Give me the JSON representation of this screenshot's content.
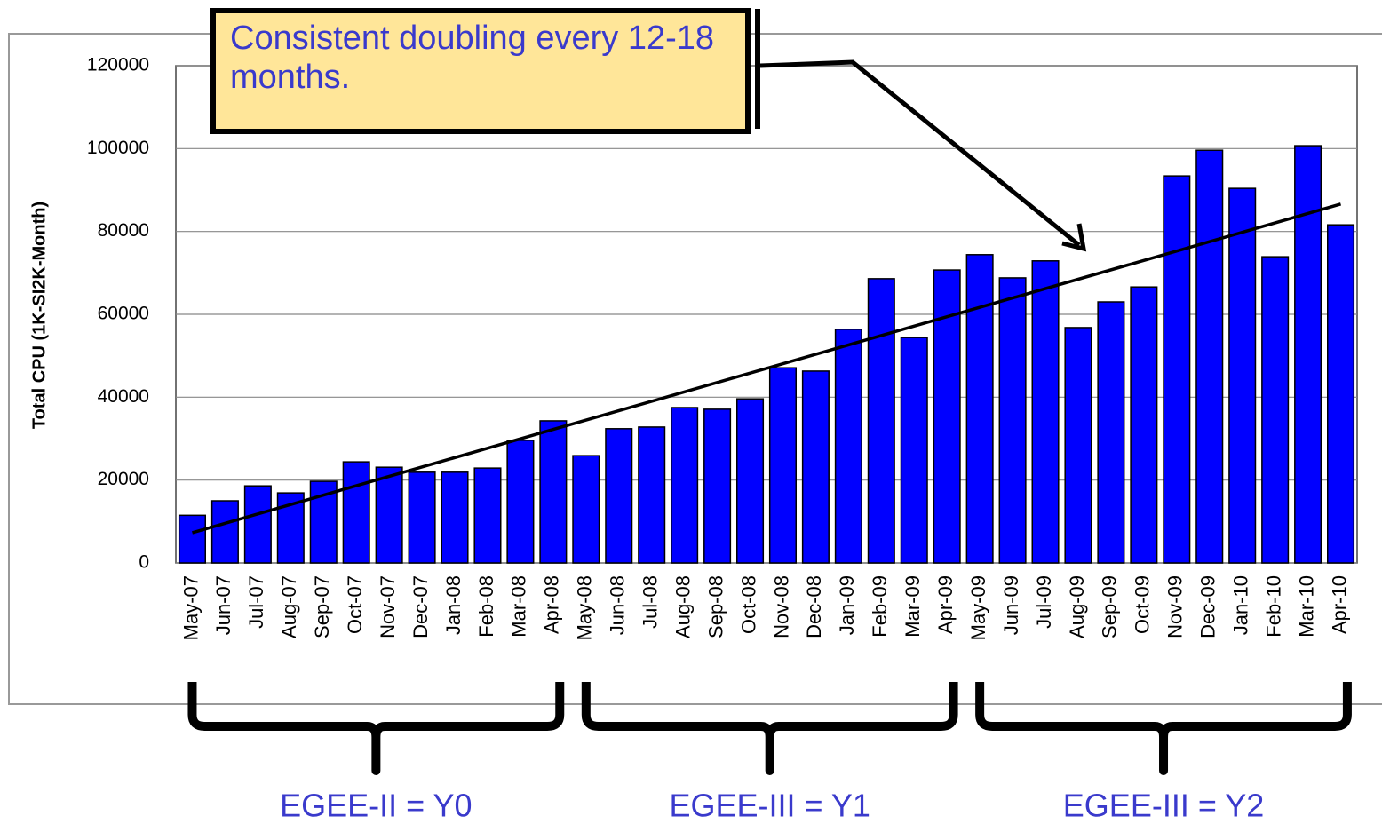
{
  "chart_data": {
    "type": "bar",
    "y_label": "Total CPU (1K-SI2K-Month)",
    "categories": [
      "May-07",
      "Jun-07",
      "Jul-07",
      "Aug-07",
      "Sep-07",
      "Oct-07",
      "Nov-07",
      "Dec-07",
      "Jan-08",
      "Feb-08",
      "Mar-08",
      "Apr-08",
      "May-08",
      "Jun-08",
      "Jul-08",
      "Aug-08",
      "Sep-08",
      "Oct-08",
      "Nov-08",
      "Dec-08",
      "Jan-09",
      "Feb-09",
      "Mar-09",
      "Apr-09",
      "May-09",
      "Jun-09",
      "Jul-09",
      "Aug-09",
      "Sep-09",
      "Oct-09",
      "Nov-09",
      "Dec-09",
      "Jan-10",
      "Feb-10",
      "Mar-10",
      "Apr-10"
    ],
    "values": [
      11500,
      15000,
      18600,
      16900,
      19700,
      24400,
      23100,
      21900,
      21900,
      22900,
      29600,
      34300,
      25900,
      32400,
      32800,
      37500,
      37100,
      39600,
      47100,
      46300,
      56400,
      68600,
      54400,
      70700,
      74400,
      68800,
      72900,
      56800,
      63000,
      66600,
      93400,
      99600,
      90400,
      73900,
      100700,
      81600
    ],
    "color": "#0000ff",
    "trendline": [
      7300,
      86600
    ],
    "ylim": [
      0,
      120000
    ],
    "yticks": [
      0,
      20000,
      40000,
      60000,
      80000,
      100000,
      120000
    ],
    "grid": true,
    "annotation": "Consistent doubling every 12-18 months.",
    "periods": [
      "EGEE-II = Y0",
      "EGEE-III = Y1",
      "EGEE-III = Y2"
    ]
  }
}
